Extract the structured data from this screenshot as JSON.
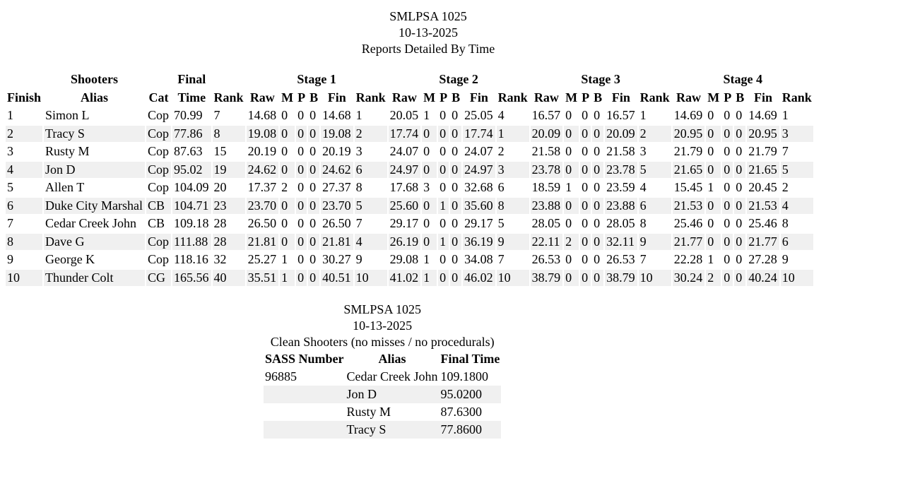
{
  "report": {
    "title": "SMLPSA 1025",
    "date": "10-13-2025",
    "subtitle": "Reports Detailed By Time",
    "group_headers": [
      "",
      "Shooters",
      "",
      "Final",
      "",
      "Stage 1",
      "Stage 2",
      "Stage 3",
      "Stage 4"
    ],
    "columns": [
      "Finish",
      "Alias",
      "Cat",
      "Time",
      "Rank",
      "Raw",
      "M",
      "P",
      "B",
      "Fin",
      "Rank",
      "Raw",
      "M",
      "P",
      "B",
      "Fin",
      "Rank",
      "Raw",
      "M",
      "P",
      "B",
      "Fin",
      "Rank",
      "Raw",
      "M",
      "P",
      "B",
      "Fin",
      "Rank"
    ],
    "rows": [
      [
        "1",
        "Simon L",
        "Cop",
        "70.99",
        "7",
        "14.68",
        "0",
        "0",
        "0",
        "14.68",
        "1",
        "20.05",
        "1",
        "0",
        "0",
        "25.05",
        "4",
        "16.57",
        "0",
        "0",
        "0",
        "16.57",
        "1",
        "14.69",
        "0",
        "0",
        "0",
        "14.69",
        "1"
      ],
      [
        "2",
        "Tracy S",
        "Cop",
        "77.86",
        "8",
        "19.08",
        "0",
        "0",
        "0",
        "19.08",
        "2",
        "17.74",
        "0",
        "0",
        "0",
        "17.74",
        "1",
        "20.09",
        "0",
        "0",
        "0",
        "20.09",
        "2",
        "20.95",
        "0",
        "0",
        "0",
        "20.95",
        "3"
      ],
      [
        "3",
        "Rusty M",
        "Cop",
        "87.63",
        "15",
        "20.19",
        "0",
        "0",
        "0",
        "20.19",
        "3",
        "24.07",
        "0",
        "0",
        "0",
        "24.07",
        "2",
        "21.58",
        "0",
        "0",
        "0",
        "21.58",
        "3",
        "21.79",
        "0",
        "0",
        "0",
        "21.79",
        "7"
      ],
      [
        "4",
        "Jon D",
        "Cop",
        "95.02",
        "19",
        "24.62",
        "0",
        "0",
        "0",
        "24.62",
        "6",
        "24.97",
        "0",
        "0",
        "0",
        "24.97",
        "3",
        "23.78",
        "0",
        "0",
        "0",
        "23.78",
        "5",
        "21.65",
        "0",
        "0",
        "0",
        "21.65",
        "5"
      ],
      [
        "5",
        "Allen T",
        "Cop",
        "104.09",
        "20",
        "17.37",
        "2",
        "0",
        "0",
        "27.37",
        "8",
        "17.68",
        "3",
        "0",
        "0",
        "32.68",
        "6",
        "18.59",
        "1",
        "0",
        "0",
        "23.59",
        "4",
        "15.45",
        "1",
        "0",
        "0",
        "20.45",
        "2"
      ],
      [
        "6",
        "Duke City Marshal",
        "CB",
        "104.71",
        "23",
        "23.70",
        "0",
        "0",
        "0",
        "23.70",
        "5",
        "25.60",
        "0",
        "1",
        "0",
        "35.60",
        "8",
        "23.88",
        "0",
        "0",
        "0",
        "23.88",
        "6",
        "21.53",
        "0",
        "0",
        "0",
        "21.53",
        "4"
      ],
      [
        "7",
        "Cedar Creek John",
        "CB",
        "109.18",
        "28",
        "26.50",
        "0",
        "0",
        "0",
        "26.50",
        "7",
        "29.17",
        "0",
        "0",
        "0",
        "29.17",
        "5",
        "28.05",
        "0",
        "0",
        "0",
        "28.05",
        "8",
        "25.46",
        "0",
        "0",
        "0",
        "25.46",
        "8"
      ],
      [
        "8",
        "Dave G",
        "Cop",
        "111.88",
        "28",
        "21.81",
        "0",
        "0",
        "0",
        "21.81",
        "4",
        "26.19",
        "0",
        "1",
        "0",
        "36.19",
        "9",
        "22.11",
        "2",
        "0",
        "0",
        "32.11",
        "9",
        "21.77",
        "0",
        "0",
        "0",
        "21.77",
        "6"
      ],
      [
        "9",
        "George K",
        "Cop",
        "118.16",
        "32",
        "25.27",
        "1",
        "0",
        "0",
        "30.27",
        "9",
        "29.08",
        "1",
        "0",
        "0",
        "34.08",
        "7",
        "26.53",
        "0",
        "0",
        "0",
        "26.53",
        "7",
        "22.28",
        "1",
        "0",
        "0",
        "27.28",
        "9"
      ],
      [
        "10",
        "Thunder Colt",
        "CG",
        "165.56",
        "40",
        "35.51",
        "1",
        "0",
        "0",
        "40.51",
        "10",
        "41.02",
        "1",
        "0",
        "0",
        "46.02",
        "10",
        "38.79",
        "0",
        "0",
        "0",
        "38.79",
        "10",
        "30.24",
        "2",
        "0",
        "0",
        "40.24",
        "10"
      ]
    ]
  },
  "clean": {
    "title": "SMLPSA 1025",
    "date": "10-13-2025",
    "subtitle": "Clean Shooters (no misses / no procedurals)",
    "columns": [
      "SASS Number",
      "Alias",
      "Final Time"
    ],
    "rows": [
      [
        "96885",
        "Cedar Creek John",
        "109.1800"
      ],
      [
        "",
        "Jon D",
        "95.0200"
      ],
      [
        "",
        "Rusty M",
        "87.6300"
      ],
      [
        "",
        "Tracy S",
        "77.8600"
      ]
    ]
  }
}
